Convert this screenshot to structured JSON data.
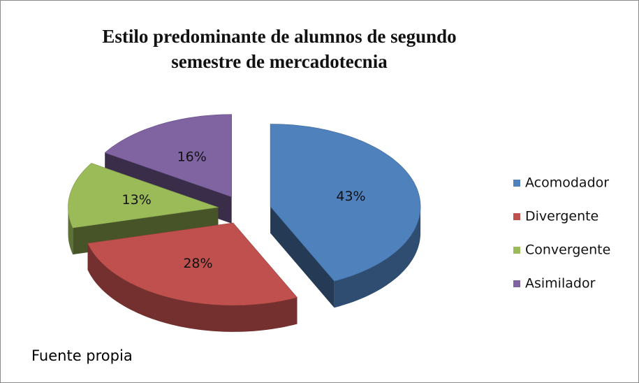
{
  "chart_data": {
    "type": "pie",
    "title": "Estilo predominante de alumnos de segundo semestre de mercadotecnia",
    "categories": [
      "Acomodador",
      "Divergente",
      "Convergente",
      "Asimilador"
    ],
    "values": [
      43,
      28,
      13,
      16
    ],
    "value_labels": [
      "43%",
      "28%",
      "13%",
      "16%"
    ],
    "colors": [
      "#4f81bd",
      "#c0504d",
      "#9bbb59",
      "#8064a2"
    ],
    "legend": "right",
    "source": "Fuente propia"
  }
}
